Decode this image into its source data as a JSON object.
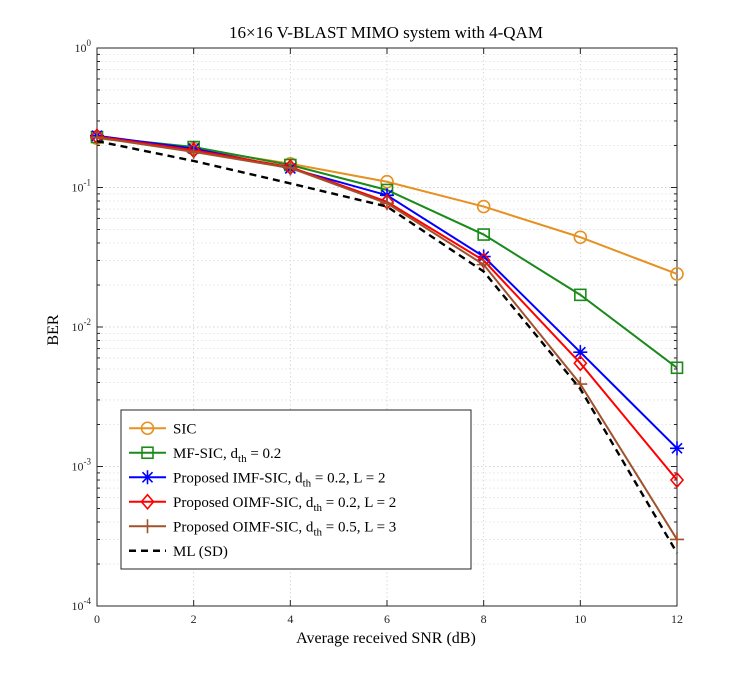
{
  "chart_data": {
    "type": "line",
    "title": "16×16 V-BLAST MIMO system with 4-QAM",
    "xlabel": "Average received SNR (dB)",
    "ylabel": "BER",
    "xlim": [
      0,
      12
    ],
    "ylim": [
      0.0001,
      1
    ],
    "yscale": "log",
    "grid": true,
    "x_ticks": [
      0,
      2,
      4,
      6,
      8,
      10,
      12
    ],
    "y_ticks": [
      {
        "value": 1,
        "base": "10",
        "exp": "0"
      },
      {
        "value": 0.1,
        "base": "10",
        "exp": "-1"
      },
      {
        "value": 0.01,
        "base": "10",
        "exp": "-2"
      },
      {
        "value": 0.001,
        "base": "10",
        "exp": "-3"
      },
      {
        "value": 0.0001,
        "base": "10",
        "exp": "-4"
      }
    ],
    "legend_position": "bottom-left",
    "series": [
      {
        "name": "SIC",
        "legend": {
          "pre": "SIC"
        },
        "color": "#E69121",
        "marker": "circle",
        "dashed": false,
        "x": [
          0,
          2,
          4,
          6,
          8,
          10,
          12
        ],
        "y": [
          0.225,
          0.19,
          0.148,
          0.11,
          0.073,
          0.044,
          0.024
        ]
      },
      {
        "name": "MF-SIC, d_th = 0.2",
        "legend": {
          "pre": "MF-SIC, d",
          "sub": "th",
          "post": " = 0.2"
        },
        "color": "#1A8A1A",
        "marker": "square",
        "dashed": false,
        "x": [
          0,
          2,
          4,
          6,
          8,
          10,
          12
        ],
        "y": [
          0.23,
          0.195,
          0.145,
          0.096,
          0.046,
          0.017,
          0.0051
        ]
      },
      {
        "name": "Proposed IMF-SIC, d_th = 0.2, L = 2",
        "legend": {
          "pre": "Proposed IMF-SIC, d",
          "sub": "th",
          "post": " = 0.2, L = 2"
        },
        "color": "#0000FF",
        "marker": "asterisk",
        "dashed": false,
        "x": [
          0,
          2,
          4,
          6,
          8,
          10,
          12
        ],
        "y": [
          0.235,
          0.19,
          0.137,
          0.088,
          0.032,
          0.0066,
          0.00135
        ]
      },
      {
        "name": "Proposed OIMF-SIC, d_th = 0.2, L = 2",
        "legend": {
          "pre": "Proposed OIMF-SIC, d",
          "sub": "th",
          "post": " = 0.2, L = 2"
        },
        "color": "#FF0000",
        "marker": "diamond",
        "dashed": false,
        "x": [
          0,
          2,
          4,
          6,
          8,
          10,
          12
        ],
        "y": [
          0.232,
          0.185,
          0.14,
          0.079,
          0.03,
          0.0055,
          0.0008
        ]
      },
      {
        "name": "Proposed OIMF-SIC, d_th = 0.5, L = 3",
        "legend": {
          "pre": "Proposed OIMF-SIC, d",
          "sub": "th",
          "post": " = 0.5, L = 3"
        },
        "color": "#A0522D",
        "marker": "plus",
        "dashed": false,
        "x": [
          0,
          2,
          4,
          6,
          8,
          10,
          12
        ],
        "y": [
          0.228,
          0.18,
          0.138,
          0.077,
          0.028,
          0.0039,
          0.0003
        ]
      },
      {
        "name": "ML (SD)",
        "legend": {
          "pre": "ML (SD)"
        },
        "color": "#000000",
        "marker": "none",
        "dashed": true,
        "x": [
          0,
          2,
          4,
          6,
          8,
          10,
          12
        ],
        "y": [
          0.215,
          0.155,
          0.107,
          0.073,
          0.025,
          0.0036,
          0.00024
        ]
      }
    ]
  }
}
